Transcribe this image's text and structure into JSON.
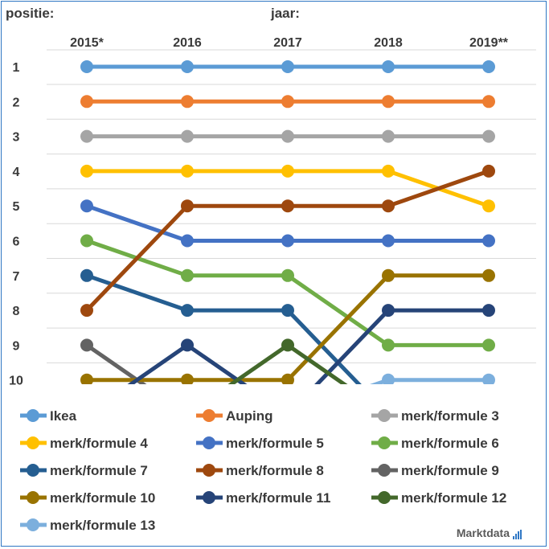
{
  "header": {
    "y_axis_label": "positie:",
    "x_axis_label": "jaar:"
  },
  "logo": {
    "text": "Marktdata"
  },
  "chart_data": {
    "type": "line",
    "title": "",
    "xlabel": "jaar:",
    "ylabel": "positie:",
    "categories": [
      "2015*",
      "2016",
      "2017",
      "2018",
      "2019**"
    ],
    "y_ticks": [
      "1",
      "2",
      "3",
      "4",
      "5",
      "6",
      "7",
      "8",
      "9",
      "10"
    ],
    "ylim": [
      1,
      10
    ],
    "y_inverted": true,
    "grid": true,
    "legend_position": "bottom",
    "series": [
      {
        "name": "Ikea",
        "color": "#5b9bd5",
        "values": [
          1,
          1,
          1,
          1,
          1
        ]
      },
      {
        "name": "Auping",
        "color": "#ed7d31",
        "values": [
          2,
          2,
          2,
          2,
          2
        ]
      },
      {
        "name": "merk/formule 3",
        "color": "#a5a5a5",
        "values": [
          3,
          3,
          3,
          3,
          3
        ]
      },
      {
        "name": "merk/formule 4",
        "color": "#ffc000",
        "values": [
          4,
          4,
          4,
          4,
          5
        ]
      },
      {
        "name": "merk/formule 5",
        "color": "#4472c4",
        "values": [
          5,
          6,
          6,
          6,
          6
        ]
      },
      {
        "name": "merk/formule 6",
        "color": "#70ad47",
        "values": [
          6,
          7,
          7,
          9,
          9
        ]
      },
      {
        "name": "merk/formule 7",
        "color": "#255e91",
        "values": [
          7,
          8,
          8,
          null,
          null
        ]
      },
      {
        "name": "merk/formule 8",
        "color": "#9e480e",
        "values": [
          8,
          5,
          5,
          5,
          4
        ]
      },
      {
        "name": "merk/formule 9",
        "color": "#636363",
        "values": [
          9,
          null,
          null,
          null,
          null
        ]
      },
      {
        "name": "merk/formule 10",
        "color": "#997300",
        "values": [
          10,
          10,
          10,
          7,
          7
        ]
      },
      {
        "name": "merk/formule 11",
        "color": "#264478",
        "values": [
          null,
          9,
          null,
          8,
          8
        ]
      },
      {
        "name": "merk/formule 12",
        "color": "#43682b",
        "values": [
          null,
          null,
          9,
          null,
          null
        ]
      },
      {
        "name": "merk/formule 13",
        "color": "#7cafdd",
        "values": [
          null,
          null,
          null,
          10,
          10
        ]
      }
    ]
  }
}
